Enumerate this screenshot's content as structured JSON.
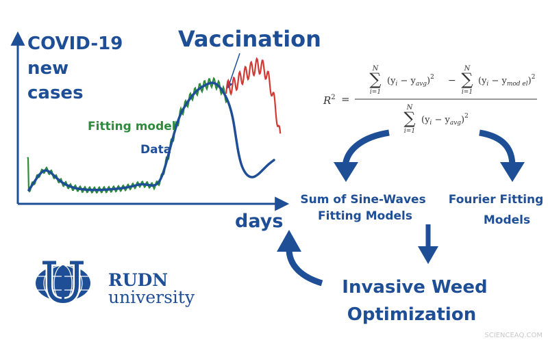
{
  "chart": {
    "ylabel": [
      "COVID-19",
      "new",
      "cases"
    ],
    "xlabel": "days",
    "annotation": "Vaccination",
    "legend_fit": "Fitting model",
    "legend_data": "Data"
  },
  "equation": {
    "lhs": "R",
    "sup2": "2",
    "sum": "∑",
    "upper": "N",
    "lower": "i=1",
    "term_avg": "(y",
    "sub_i": "i",
    "minus": " − y",
    "sub_avg": "avg",
    "close": ")",
    "sub_model": "mod el",
    "op_minus": "−",
    "eq": "="
  },
  "flow": {
    "sine_line1": "Sum of Sine-Waves",
    "sine_line2": "Fitting Models",
    "fourier_line1": "Fourier Fitting",
    "fourier_line2": "Models",
    "iwo_line1": "Invasive Weed",
    "iwo_line2": "Optimization"
  },
  "logo": {
    "line1": "RUDN",
    "line2": "university"
  },
  "watermark": "SCIENCEAQ.COM",
  "colors": {
    "primary": "#1d4e96",
    "fit_green": "#2e8b3d",
    "fit_red": "#cf3a36",
    "watermark": "#c8c8c8"
  }
}
